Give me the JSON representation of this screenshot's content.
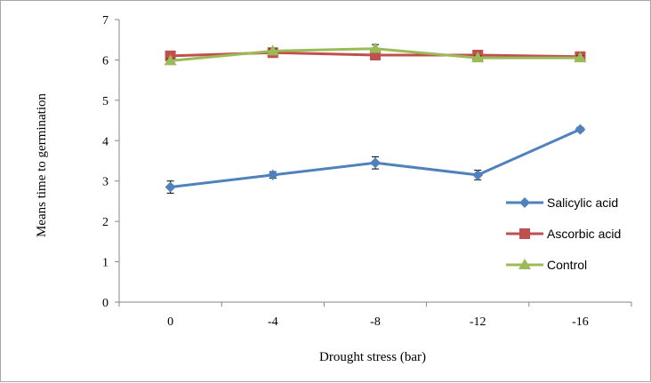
{
  "chart_data": {
    "type": "line",
    "title": "",
    "xlabel": "Drought stress (bar)",
    "ylabel": "Means time to germination",
    "categories": [
      "0",
      "-4",
      "-8",
      "-12",
      "-16"
    ],
    "ylim": [
      0,
      7
    ],
    "yticks": [
      "0",
      "1",
      "2",
      "3",
      "4",
      "5",
      "6",
      "7"
    ],
    "grid": false,
    "legend_position": "right",
    "series": [
      {
        "name": "Salicylic acid",
        "color": "#4f81bd",
        "marker": "diamond",
        "values": [
          2.85,
          3.15,
          3.45,
          3.15,
          4.28
        ],
        "errors": [
          0.15,
          0.08,
          0.15,
          0.12,
          0.05
        ]
      },
      {
        "name": "Ascorbic acid",
        "color": "#c0504d",
        "marker": "square",
        "values": [
          6.1,
          6.18,
          6.12,
          6.12,
          6.08
        ],
        "errors": [
          0.05,
          0.05,
          0.05,
          0.05,
          0.05
        ]
      },
      {
        "name": "Control",
        "color": "#9bbb59",
        "marker": "triangle",
        "values": [
          5.98,
          6.22,
          6.28,
          6.05,
          6.05
        ],
        "errors": [
          0.05,
          0.05,
          0.1,
          0.05,
          0.05
        ]
      }
    ]
  }
}
